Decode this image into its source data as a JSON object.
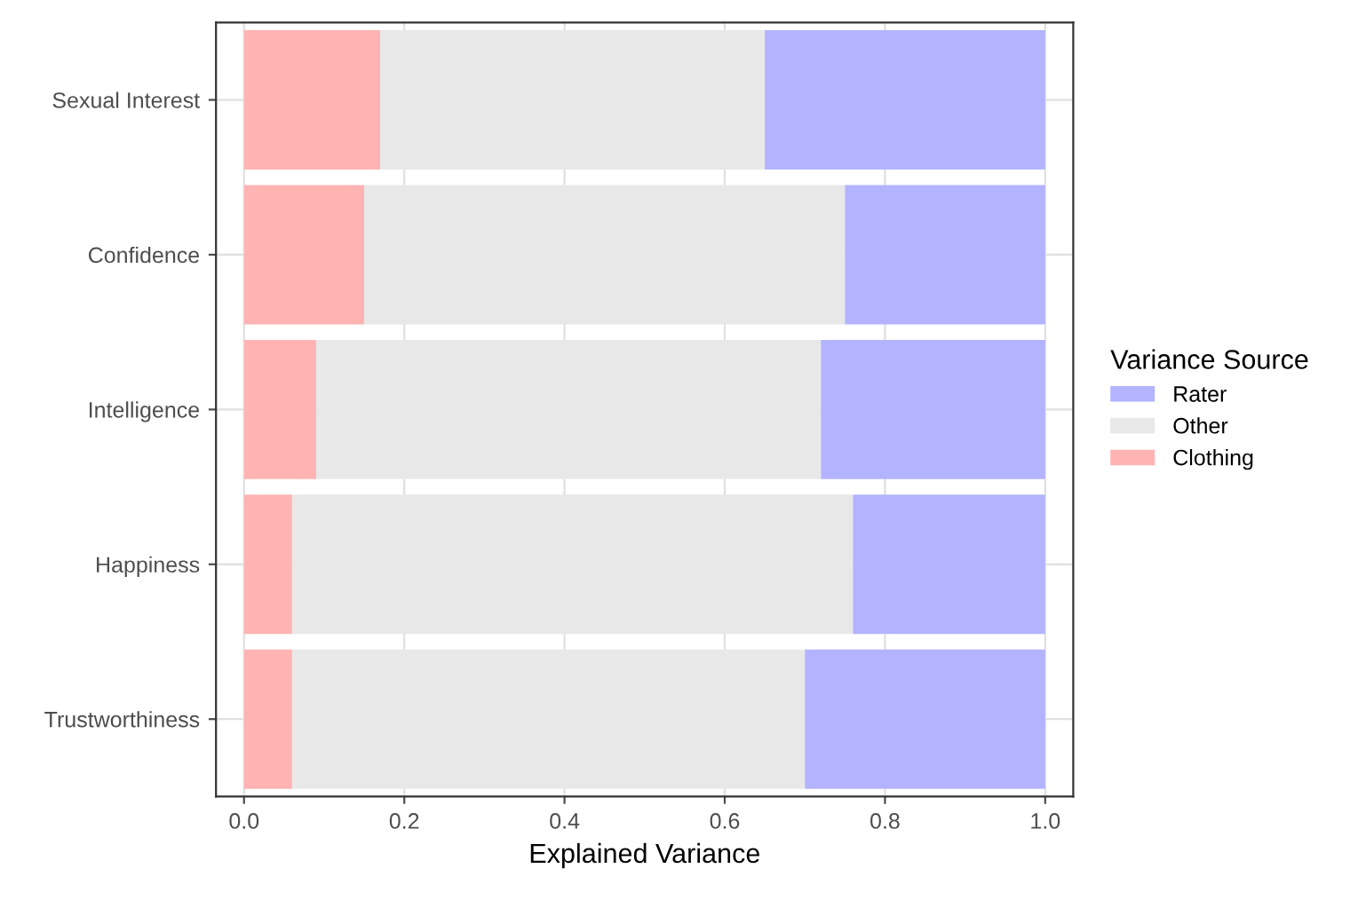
{
  "chart_data": {
    "type": "bar",
    "orientation": "horizontal",
    "stacked": true,
    "xlabel": "Explained Variance",
    "legend_title": "Variance Source",
    "legend": "right",
    "grid": true,
    "categories": [
      "Sexual Interest",
      "Confidence",
      "Intelligence",
      "Happiness",
      "Trustworthiness"
    ],
    "series": [
      {
        "name": "Clothing",
        "color": "#ffb3b3",
        "values": [
          0.17,
          0.15,
          0.09,
          0.06,
          0.06
        ]
      },
      {
        "name": "Other",
        "color": "#e8e8e8",
        "values": [
          0.48,
          0.6,
          0.63,
          0.7,
          0.64
        ]
      },
      {
        "name": "Rater",
        "color": "#b3b3ff",
        "values": [
          0.35,
          0.25,
          0.28,
          0.24,
          0.3
        ]
      }
    ],
    "xlim": [
      -0.035,
      1.035
    ],
    "xticks": [
      {
        "value": 0,
        "label": "0.0"
      },
      {
        "value": 0.2,
        "label": "0.2"
      },
      {
        "value": 0.4,
        "label": "0.4"
      },
      {
        "value": 0.6,
        "label": "0.6"
      },
      {
        "value": 0.8,
        "label": "0.8"
      },
      {
        "value": 1,
        "label": "1.0"
      }
    ]
  }
}
